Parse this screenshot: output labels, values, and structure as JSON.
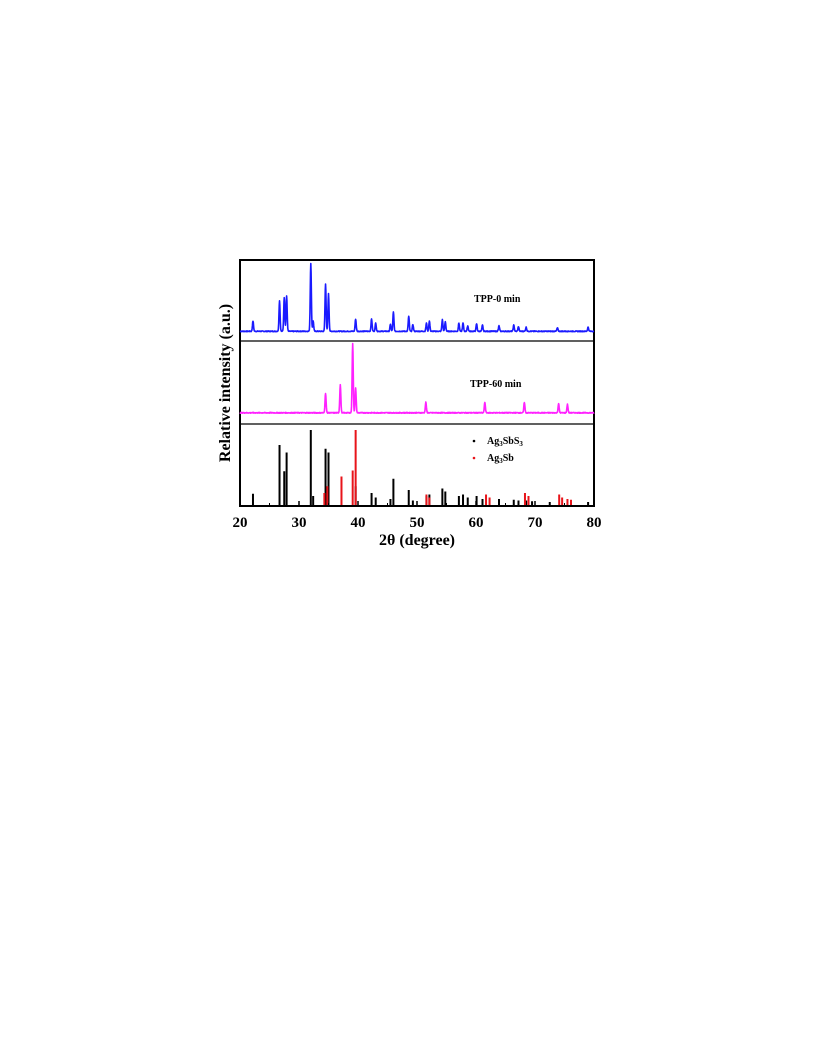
{
  "chart_data": {
    "type": "line",
    "xlabel": "2θ (degree)",
    "ylabel": "Relative intensity (a.u.)",
    "xlim": [
      20,
      80
    ],
    "xticks": [
      "20",
      "30",
      "40",
      "50",
      "60",
      "70",
      "80"
    ],
    "grid": false,
    "panels": [
      {
        "label": "TPP-0 min",
        "color": "#1a1aff",
        "baseline": 0.04,
        "peaks": [
          {
            "x": 22.2,
            "y": 0.15
          },
          {
            "x": 26.7,
            "y": 0.45
          },
          {
            "x": 27.5,
            "y": 0.5
          },
          {
            "x": 27.9,
            "y": 0.52
          },
          {
            "x": 32.0,
            "y": 1.0
          },
          {
            "x": 32.4,
            "y": 0.15
          },
          {
            "x": 34.5,
            "y": 0.7
          },
          {
            "x": 35.0,
            "y": 0.55
          },
          {
            "x": 39.6,
            "y": 0.18
          },
          {
            "x": 42.3,
            "y": 0.18
          },
          {
            "x": 43.0,
            "y": 0.12
          },
          {
            "x": 45.5,
            "y": 0.1
          },
          {
            "x": 46.0,
            "y": 0.28
          },
          {
            "x": 48.6,
            "y": 0.22
          },
          {
            "x": 49.3,
            "y": 0.1
          },
          {
            "x": 51.6,
            "y": 0.12
          },
          {
            "x": 52.1,
            "y": 0.15
          },
          {
            "x": 54.3,
            "y": 0.17
          },
          {
            "x": 54.8,
            "y": 0.14
          },
          {
            "x": 57.1,
            "y": 0.12
          },
          {
            "x": 57.8,
            "y": 0.12
          },
          {
            "x": 58.6,
            "y": 0.08
          },
          {
            "x": 60.1,
            "y": 0.11
          },
          {
            "x": 61.1,
            "y": 0.09
          },
          {
            "x": 63.9,
            "y": 0.08
          },
          {
            "x": 66.4,
            "y": 0.09
          },
          {
            "x": 67.2,
            "y": 0.07
          },
          {
            "x": 68.5,
            "y": 0.06
          },
          {
            "x": 73.8,
            "y": 0.05
          },
          {
            "x": 79.0,
            "y": 0.06
          }
        ]
      },
      {
        "label": "TPP-60 min",
        "color": "#ff22ff",
        "baseline": 0.06,
        "peaks": [
          {
            "x": 34.5,
            "y": 0.28
          },
          {
            "x": 37.0,
            "y": 0.4
          },
          {
            "x": 39.1,
            "y": 1.0
          },
          {
            "x": 39.6,
            "y": 0.35
          },
          {
            "x": 51.5,
            "y": 0.15
          },
          {
            "x": 61.5,
            "y": 0.15
          },
          {
            "x": 68.2,
            "y": 0.15
          },
          {
            "x": 74.0,
            "y": 0.13
          },
          {
            "x": 75.5,
            "y": 0.12
          }
        ]
      }
    ],
    "reference_panel": {
      "series": [
        {
          "name": "Ag3SbS3",
          "color": "#000000",
          "lines": [
            {
              "x": 22.2,
              "y": 0.15
            },
            {
              "x": 26.7,
              "y": 0.8
            },
            {
              "x": 27.5,
              "y": 0.45
            },
            {
              "x": 27.9,
              "y": 0.7
            },
            {
              "x": 32.0,
              "y": 1.0
            },
            {
              "x": 32.4,
              "y": 0.12
            },
            {
              "x": 34.5,
              "y": 0.75
            },
            {
              "x": 35.0,
              "y": 0.7
            },
            {
              "x": 39.6,
              "y": 0.25
            },
            {
              "x": 42.3,
              "y": 0.16
            },
            {
              "x": 43.0,
              "y": 0.1
            },
            {
              "x": 45.5,
              "y": 0.08
            },
            {
              "x": 46.0,
              "y": 0.35
            },
            {
              "x": 48.6,
              "y": 0.2
            },
            {
              "x": 49.3,
              "y": 0.06
            },
            {
              "x": 51.6,
              "y": 0.12
            },
            {
              "x": 52.1,
              "y": 0.14
            },
            {
              "x": 54.3,
              "y": 0.22
            },
            {
              "x": 54.8,
              "y": 0.18
            },
            {
              "x": 57.1,
              "y": 0.12
            },
            {
              "x": 57.8,
              "y": 0.14
            },
            {
              "x": 58.6,
              "y": 0.1
            },
            {
              "x": 60.1,
              "y": 0.12
            },
            {
              "x": 61.1,
              "y": 0.08
            },
            {
              "x": 63.9,
              "y": 0.08
            },
            {
              "x": 66.4,
              "y": 0.07
            },
            {
              "x": 67.2,
              "y": 0.06
            },
            {
              "x": 68.5,
              "y": 0.06
            },
            {
              "x": 69.5,
              "y": 0.05
            },
            {
              "x": 72.5,
              "y": 0.04
            },
            {
              "x": 79.0,
              "y": 0.04
            }
          ]
        },
        {
          "name": "Ag3Sb",
          "color": "#e8141a",
          "lines": [
            {
              "x": 34.3,
              "y": 0.16
            },
            {
              "x": 34.8,
              "y": 0.25
            },
            {
              "x": 37.2,
              "y": 0.38
            },
            {
              "x": 39.1,
              "y": 0.46
            },
            {
              "x": 39.6,
              "y": 1.0
            },
            {
              "x": 51.6,
              "y": 0.14
            },
            {
              "x": 52.1,
              "y": 0.1
            },
            {
              "x": 61.7,
              "y": 0.14
            },
            {
              "x": 62.3,
              "y": 0.1
            },
            {
              "x": 68.3,
              "y": 0.16
            },
            {
              "x": 68.9,
              "y": 0.12
            },
            {
              "x": 74.1,
              "y": 0.14
            },
            {
              "x": 74.6,
              "y": 0.1
            },
            {
              "x": 75.5,
              "y": 0.08
            },
            {
              "x": 76.1,
              "y": 0.07
            }
          ]
        }
      ],
      "legend": [
        {
          "base": "Ag",
          "sub": "3",
          "rest": "SbS",
          "sub2": "3",
          "color": "#000000"
        },
        {
          "base": "Ag",
          "sub": "3",
          "rest": "Sb",
          "sub2": "",
          "color": "#e8141a"
        }
      ]
    }
  }
}
